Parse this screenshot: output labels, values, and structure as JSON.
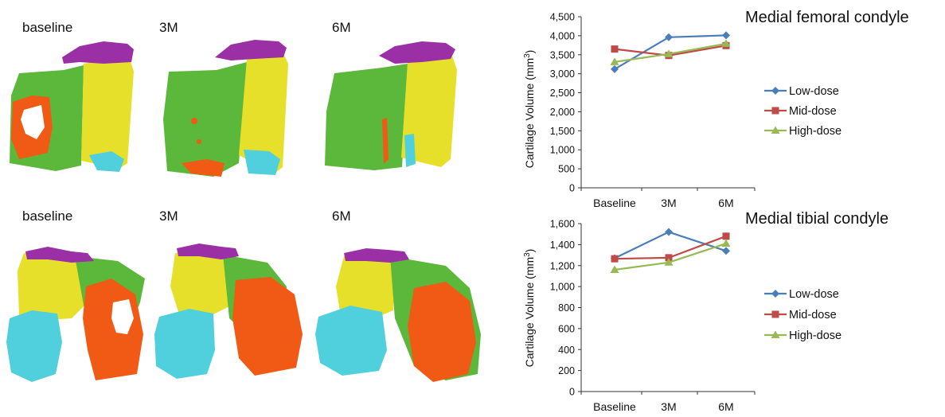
{
  "figure": {
    "panel_labels_top": [
      "baseline",
      "3M",
      "6M"
    ],
    "panel_labels_bottom": [
      "baseline",
      "3M",
      "6M"
    ],
    "region_colors": {
      "purple": "#9b2fa6",
      "green": "#5cb83a",
      "yellow": "#e6e02a",
      "orange": "#f05a14",
      "cyan": "#4fd0dc"
    }
  },
  "chart_data": [
    {
      "type": "line",
      "title": "Medial femoral condyle",
      "ylabel": "Cartilage Volume (mm3)",
      "ylabel_main": "Cartilage Volume (mm",
      "ylabel_sup": "3",
      "ylabel_end": ")",
      "categories": [
        "Baseline",
        "3M",
        "6M"
      ],
      "ylim": [
        0,
        4500
      ],
      "yticks": [
        "0",
        "500",
        "1,000",
        "1,500",
        "2,000",
        "2,500",
        "3,000",
        "3,500",
        "4,000",
        "4,500"
      ],
      "ytick_values": [
        0,
        500,
        1000,
        1500,
        2000,
        2500,
        3000,
        3500,
        4000,
        4500
      ],
      "legend_position": "right",
      "series": [
        {
          "name": "Low-dose",
          "values": [
            3120,
            3960,
            4010
          ],
          "color": "#4a7ebb",
          "marker": "diamond"
        },
        {
          "name": "Mid-dose",
          "values": [
            3650,
            3480,
            3740
          ],
          "color": "#be4b48",
          "marker": "square"
        },
        {
          "name": "High-dose",
          "values": [
            3310,
            3520,
            3790
          ],
          "color": "#98b954",
          "marker": "triangle"
        }
      ]
    },
    {
      "type": "line",
      "title": "Medial tibial condyle",
      "ylabel": "Cartilage Volume (mm3)",
      "ylabel_main": "Cartilage Volume (mm",
      "ylabel_sup": "3",
      "ylabel_end": ")",
      "categories": [
        "Baseline",
        "3M",
        "6M"
      ],
      "ylim": [
        0,
        1600
      ],
      "yticks": [
        "0",
        "200",
        "400",
        "600",
        "800",
        "1,000",
        "1,200",
        "1,400",
        "1,600"
      ],
      "ytick_values": [
        0,
        200,
        400,
        600,
        800,
        1000,
        1200,
        1400,
        1600
      ],
      "legend_position": "right",
      "series": [
        {
          "name": "Low-dose",
          "values": [
            1270,
            1520,
            1340
          ],
          "color": "#4a7ebb",
          "marker": "diamond"
        },
        {
          "name": "Mid-dose",
          "values": [
            1265,
            1275,
            1480
          ],
          "color": "#be4b48",
          "marker": "square"
        },
        {
          "name": "High-dose",
          "values": [
            1160,
            1230,
            1410
          ],
          "color": "#98b954",
          "marker": "triangle"
        }
      ]
    }
  ]
}
